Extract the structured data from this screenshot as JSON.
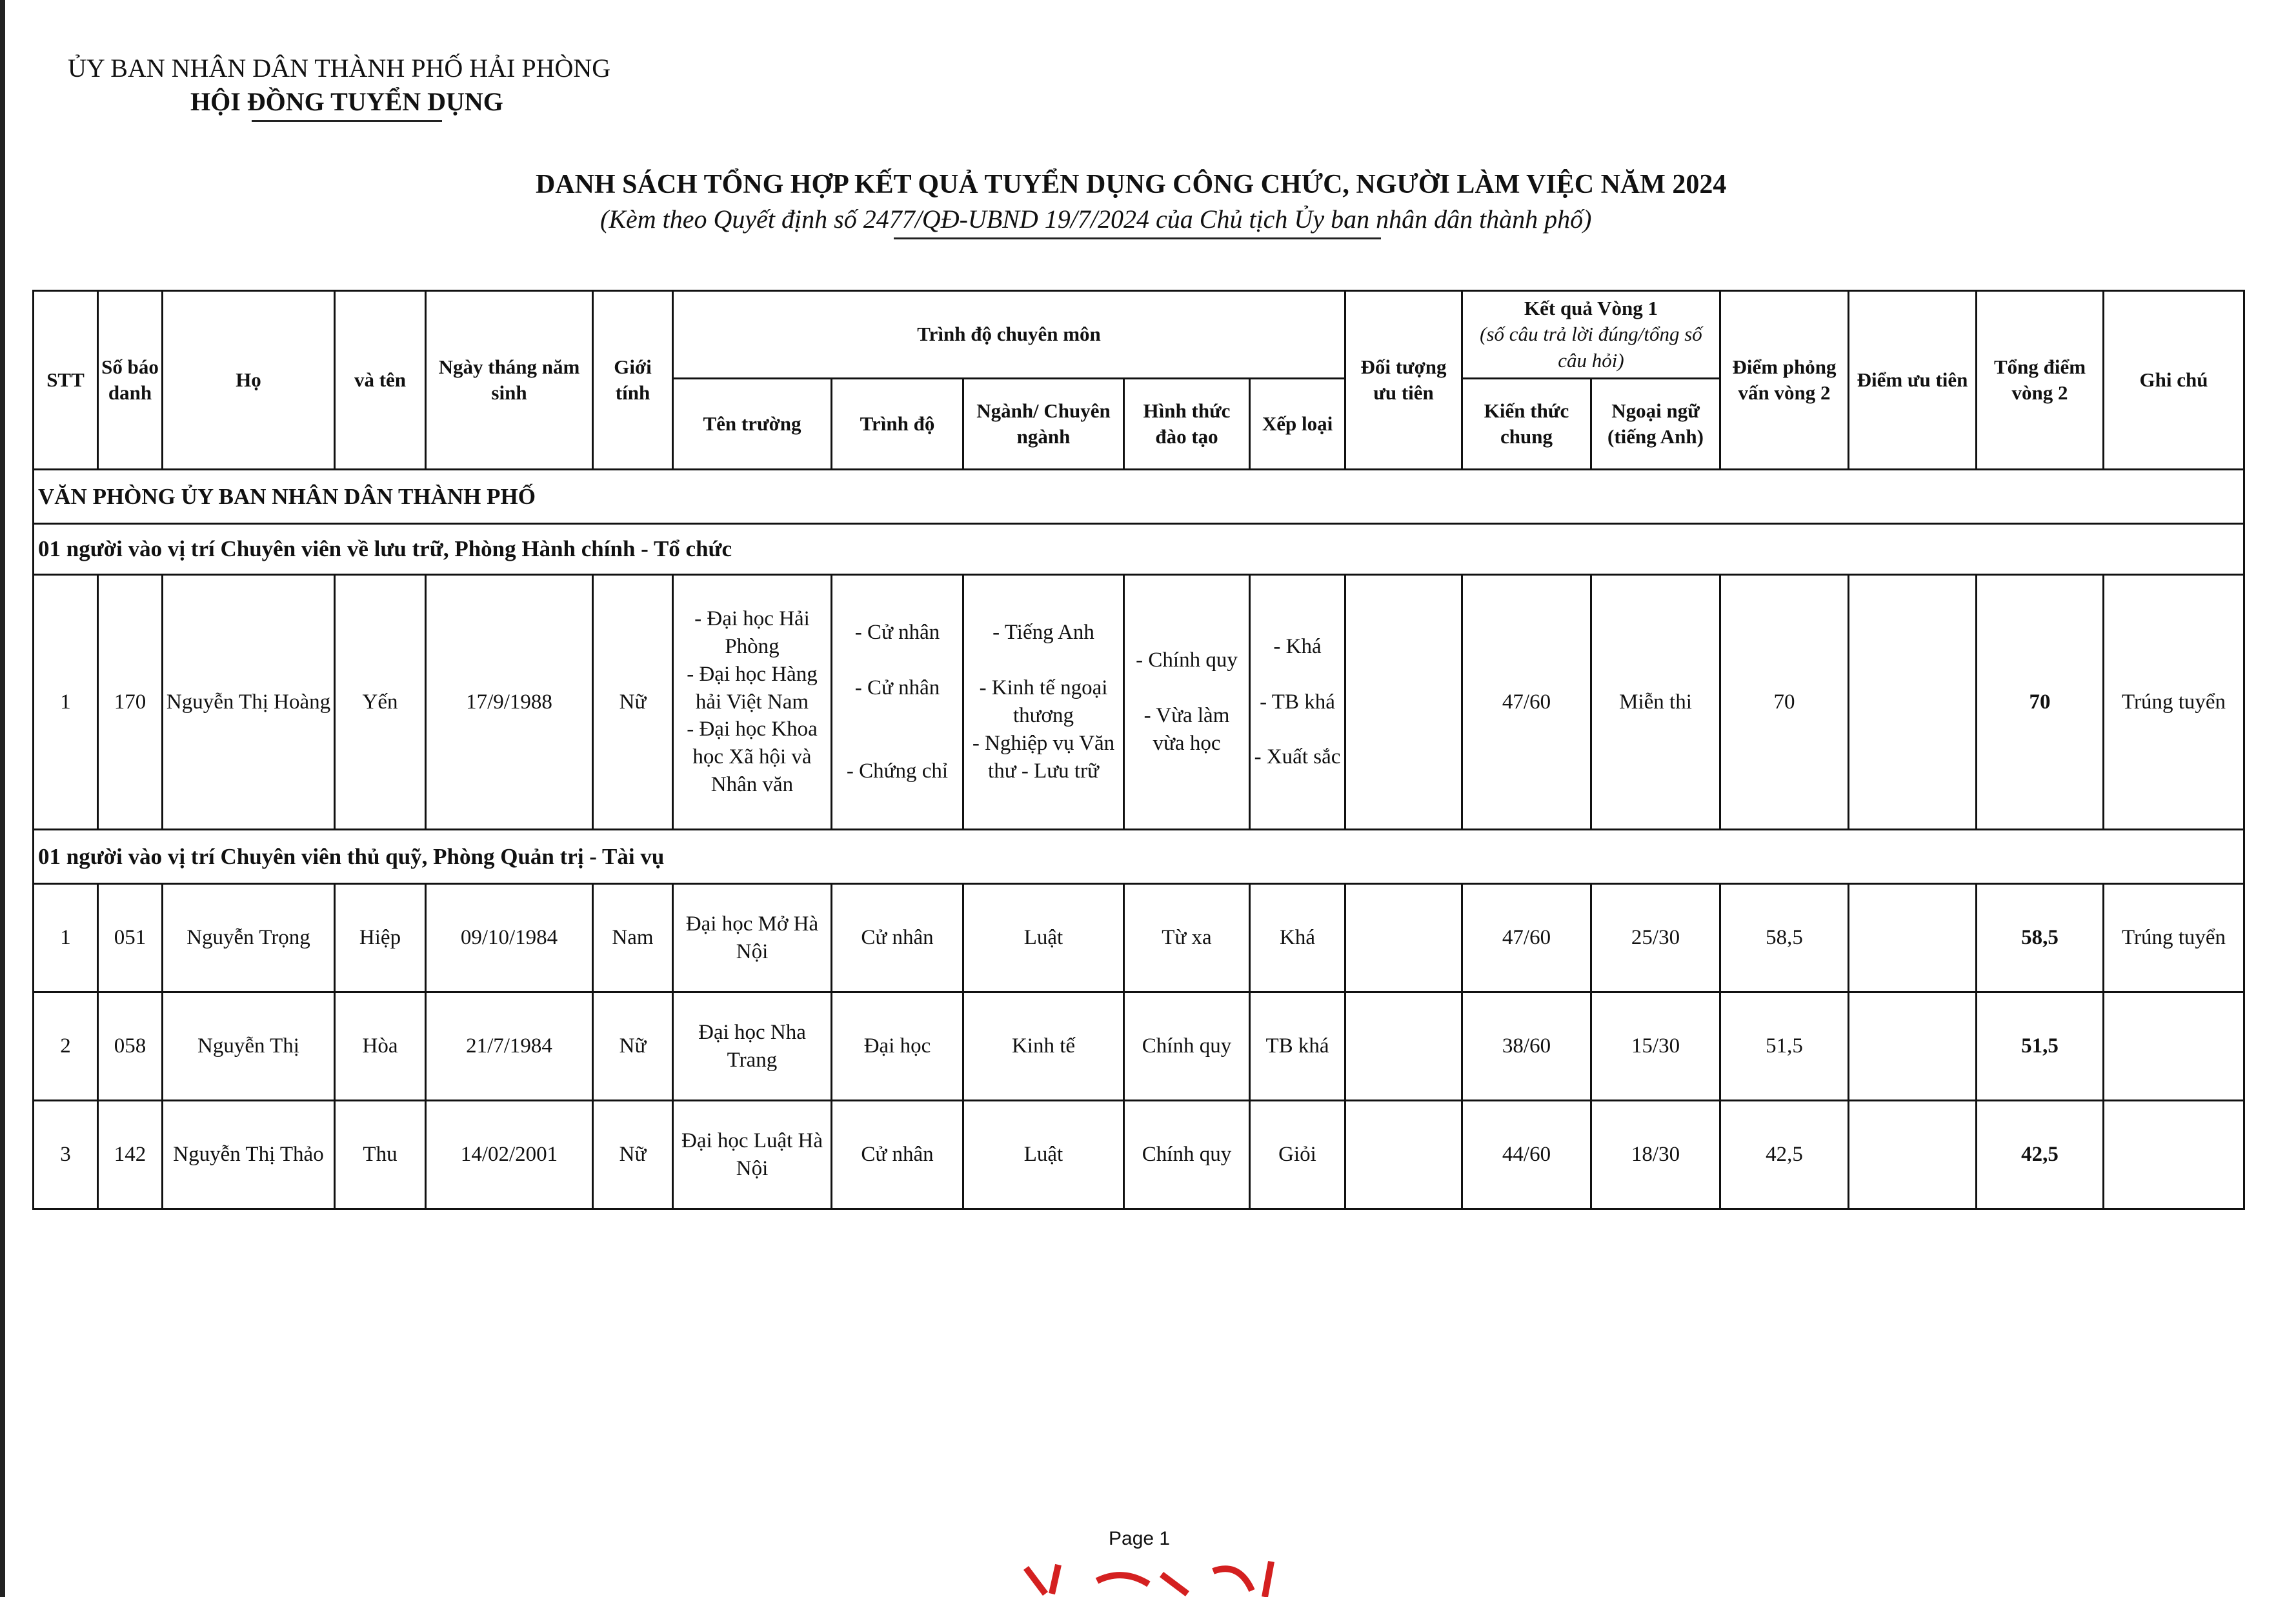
{
  "header": {
    "org": "ỦY BAN NHÂN DÂN THÀNH PHỐ HẢI PHÒNG",
    "council": "HỘI ĐỒNG TUYỂN DỤNG",
    "title": "DANH SÁCH TỔNG HỢP KẾT QUẢ TUYỂN DỤNG CÔNG CHỨC, NGƯỜI LÀM VIỆC NĂM 2024",
    "subtitle": "(Kèm theo Quyết định số 2477/QĐ-UBND 19/7/2024 của Chủ tịch Ủy ban nhân dân thành phố)"
  },
  "columns": {
    "stt": "STT",
    "sbd": "Số báo danh",
    "ho": "Họ",
    "ten": "và tên",
    "dob": "Ngày tháng năm sinh",
    "gender": "Giới tính",
    "qualification": "Trình độ chuyên môn",
    "school": "Tên trường",
    "level": "Trình độ",
    "major": "Ngành/ Chuyên ngành",
    "mode": "Hình thức đào tạo",
    "grade": "Xếp loại",
    "priority_group": "Đối tượng ưu tiên",
    "round1": "Kết quả Vòng 1",
    "round1_note": "(số câu trả lời đúng/tổng số câu hỏi)",
    "general": "Kiến thức chung",
    "foreign": "Ngoại ngữ (tiếng Anh)",
    "interview": "Điểm phỏng vấn vòng 2",
    "priority_points": "Điểm ưu tiên",
    "total": "Tổng điểm vòng 2",
    "note": "Ghi chú"
  },
  "section": "VĂN PHÒNG ỦY BAN NHÂN DÂN THÀNH PHỐ",
  "groups": [
    {
      "title": "01 người vào vị trí Chuyên viên về lưu trữ, Phòng Hành chính - Tổ chức",
      "rows": [
        {
          "stt": "1",
          "sbd": "170",
          "ho": "Nguyễn Thị Hoàng",
          "ten": "Yến",
          "dob": "17/9/1988",
          "gender": "Nữ",
          "school": "- Đại học Hải Phòng\n- Đại học Hàng hải Việt Nam\n- Đại học Khoa học Xã hội và Nhân văn",
          "level": "- Cử nhân\n\n- Cử nhân\n\n\n- Chứng chỉ",
          "major": "- Tiếng Anh\n\n- Kinh tế ngoại thương\n- Nghiệp vụ Văn thư - Lưu trữ",
          "mode": "- Chính quy\n\n- Vừa làm vừa học",
          "grade": "- Khá\n\n- TB khá\n\n- Xuất sắc",
          "priority_group": "",
          "general": "47/60",
          "foreign": "Miễn thi",
          "interview": "70",
          "priority_points": "",
          "total": "70",
          "note": "Trúng tuyển"
        }
      ]
    },
    {
      "title": "01 người vào vị trí Chuyên viên thủ quỹ, Phòng Quản trị - Tài vụ",
      "rows": [
        {
          "stt": "1",
          "sbd": "051",
          "ho": "Nguyễn Trọng",
          "ten": "Hiệp",
          "dob": "09/10/1984",
          "gender": "Nam",
          "school": "Đại học Mở Hà Nội",
          "level": "Cử nhân",
          "major": "Luật",
          "mode": "Từ xa",
          "grade": "Khá",
          "priority_group": "",
          "general": "47/60",
          "foreign": "25/30",
          "interview": "58,5",
          "priority_points": "",
          "total": "58,5",
          "note": "Trúng tuyển"
        },
        {
          "stt": "2",
          "sbd": "058",
          "ho": "Nguyễn Thị",
          "ten": "Hòa",
          "dob": "21/7/1984",
          "gender": "Nữ",
          "school": "Đại học Nha Trang",
          "level": "Đại học",
          "major": "Kinh tế",
          "mode": "Chính quy",
          "grade": "TB khá",
          "priority_group": "",
          "general": "38/60",
          "foreign": "15/30",
          "interview": "51,5",
          "priority_points": "",
          "total": "51,5",
          "note": ""
        },
        {
          "stt": "3",
          "sbd": "142",
          "ho": "Nguyễn Thị Thảo",
          "ten": "Thu",
          "dob": "14/02/2001",
          "gender": "Nữ",
          "school": "Đại học Luật Hà Nội",
          "level": "Cử nhân",
          "major": "Luật",
          "mode": "Chính quy",
          "grade": "Giỏi",
          "priority_group": "",
          "general": "44/60",
          "foreign": "18/30",
          "interview": "42,5",
          "priority_points": "",
          "total": "42,5",
          "note": ""
        }
      ]
    }
  ],
  "footer": {
    "page": "Page 1"
  },
  "colors": {
    "stamp": "#d42020"
  }
}
